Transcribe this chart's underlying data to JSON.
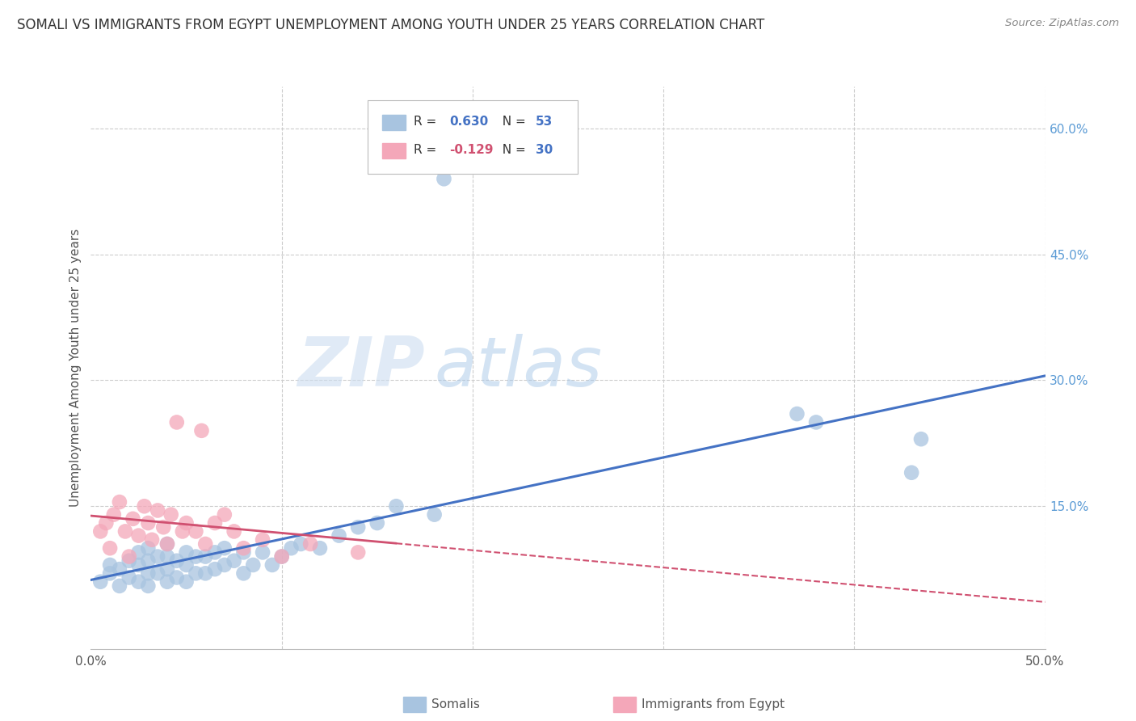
{
  "title": "SOMALI VS IMMIGRANTS FROM EGYPT UNEMPLOYMENT AMONG YOUTH UNDER 25 YEARS CORRELATION CHART",
  "source": "Source: ZipAtlas.com",
  "ylabel": "Unemployment Among Youth under 25 years",
  "xlim": [
    0.0,
    0.5
  ],
  "ylim": [
    -0.02,
    0.65
  ],
  "y_tick_vals_right": [
    0.0,
    0.15,
    0.3,
    0.45,
    0.6
  ],
  "y_tick_labels_right": [
    "",
    "15.0%",
    "30.0%",
    "45.0%",
    "60.0%"
  ],
  "somali_R": 0.63,
  "somali_N": 53,
  "egypt_R": -0.129,
  "egypt_N": 30,
  "somali_color": "#a8c4e0",
  "egypt_color": "#f4a7b9",
  "somali_line_color": "#4472c4",
  "egypt_line_color": "#d05070",
  "watermark_zip": "ZIP",
  "watermark_atlas": "atlas",
  "watermark_color_zip": "#d0dff0",
  "watermark_color_atlas": "#b0c8e8",
  "somali_x": [
    0.005,
    0.01,
    0.01,
    0.015,
    0.015,
    0.02,
    0.02,
    0.025,
    0.025,
    0.025,
    0.03,
    0.03,
    0.03,
    0.03,
    0.035,
    0.035,
    0.04,
    0.04,
    0.04,
    0.04,
    0.045,
    0.045,
    0.05,
    0.05,
    0.05,
    0.055,
    0.055,
    0.06,
    0.06,
    0.065,
    0.065,
    0.07,
    0.07,
    0.075,
    0.08,
    0.08,
    0.085,
    0.09,
    0.095,
    0.1,
    0.105,
    0.11,
    0.12,
    0.13,
    0.14,
    0.15,
    0.16,
    0.18,
    0.185,
    0.37,
    0.38,
    0.43,
    0.435
  ],
  "somali_y": [
    0.06,
    0.07,
    0.08,
    0.055,
    0.075,
    0.065,
    0.085,
    0.06,
    0.08,
    0.095,
    0.055,
    0.07,
    0.085,
    0.1,
    0.07,
    0.09,
    0.06,
    0.075,
    0.09,
    0.105,
    0.065,
    0.085,
    0.06,
    0.08,
    0.095,
    0.07,
    0.09,
    0.07,
    0.09,
    0.075,
    0.095,
    0.08,
    0.1,
    0.085,
    0.07,
    0.095,
    0.08,
    0.095,
    0.08,
    0.09,
    0.1,
    0.105,
    0.1,
    0.115,
    0.125,
    0.13,
    0.15,
    0.14,
    0.54,
    0.26,
    0.25,
    0.19,
    0.23
  ],
  "egypt_x": [
    0.005,
    0.008,
    0.01,
    0.012,
    0.015,
    0.018,
    0.02,
    0.022,
    0.025,
    0.028,
    0.03,
    0.032,
    0.035,
    0.038,
    0.04,
    0.042,
    0.045,
    0.048,
    0.05,
    0.055,
    0.058,
    0.06,
    0.065,
    0.07,
    0.075,
    0.08,
    0.09,
    0.1,
    0.115,
    0.14
  ],
  "egypt_y": [
    0.12,
    0.13,
    0.1,
    0.14,
    0.155,
    0.12,
    0.09,
    0.135,
    0.115,
    0.15,
    0.13,
    0.11,
    0.145,
    0.125,
    0.105,
    0.14,
    0.25,
    0.12,
    0.13,
    0.12,
    0.24,
    0.105,
    0.13,
    0.14,
    0.12,
    0.1,
    0.11,
    0.09,
    0.105,
    0.095
  ]
}
